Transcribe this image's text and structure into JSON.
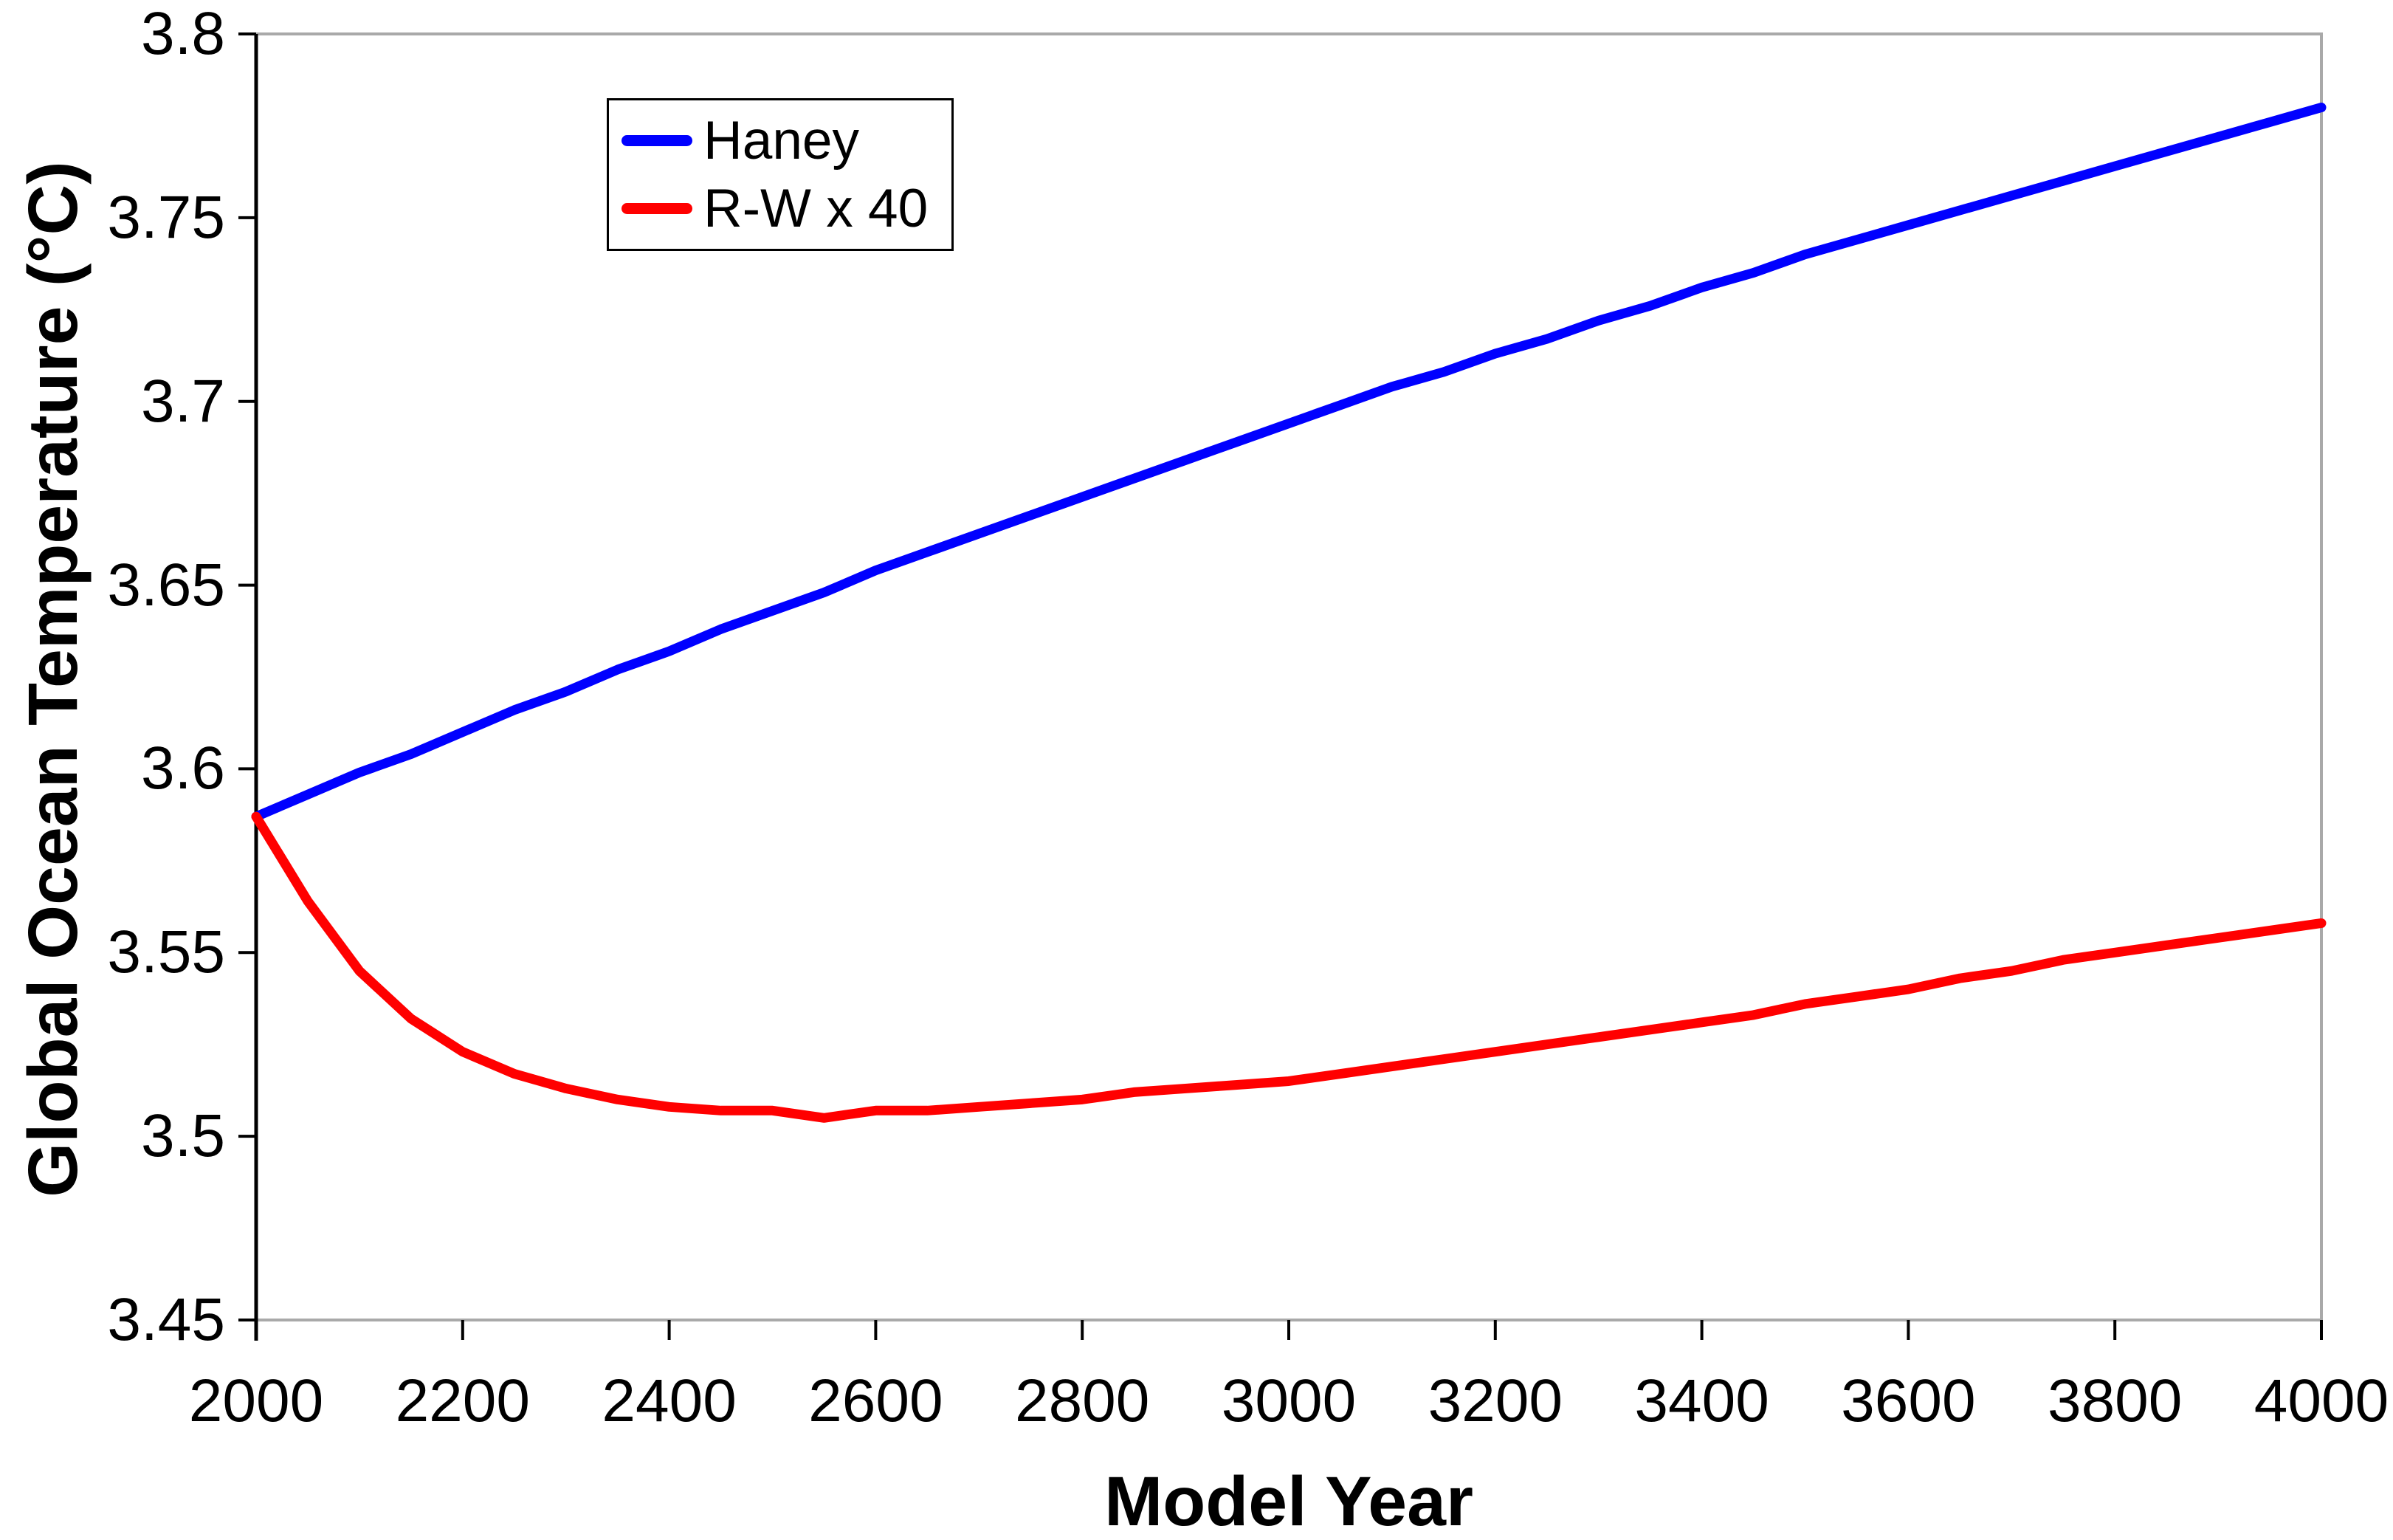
{
  "colors": {
    "background": "#ffffff",
    "plot_border": "#a9a9a9",
    "axis_line": "#000000",
    "tick": "#000000",
    "text": "#000000",
    "haney_line": "#0000ff",
    "rw_line": "#ff0000"
  },
  "axes": {
    "y": {
      "title": "Global Ocean Temperature (°C)",
      "tick_labels": [
        "3.8",
        "3.75",
        "3.7",
        "3.65",
        "3.6",
        "3.55",
        "3.5",
        "3.45"
      ],
      "tick_values": [
        3.8,
        3.75,
        3.7,
        3.65,
        3.6,
        3.55,
        3.5,
        3.45
      ]
    },
    "x": {
      "title": "Model Year",
      "tick_labels": [
        "2000",
        "2200",
        "2400",
        "2600",
        "2800",
        "3000",
        "3200",
        "3400",
        "3600",
        "3800",
        "4000"
      ],
      "tick_values": [
        2000,
        2200,
        2400,
        2600,
        2800,
        3000,
        3200,
        3400,
        3600,
        3800,
        4000
      ]
    }
  },
  "legend": {
    "entries": [
      {
        "label": "Haney",
        "color": "#0000ff"
      },
      {
        "label": "R-W x 40",
        "color": "#ff0000"
      }
    ]
  },
  "chart_data": {
    "type": "line",
    "title": "",
    "xlabel": "Model Year",
    "ylabel": "Global Ocean Temperature (°C)",
    "xlim": [
      2000,
      4000
    ],
    "ylim": [
      3.45,
      3.8
    ],
    "grid": false,
    "legend_position": "top-left-inside",
    "x": [
      2000,
      2050,
      2100,
      2150,
      2200,
      2250,
      2300,
      2350,
      2400,
      2450,
      2500,
      2550,
      2600,
      2650,
      2700,
      2750,
      2800,
      2850,
      2900,
      2950,
      3000,
      3050,
      3100,
      3150,
      3200,
      3250,
      3300,
      3350,
      3400,
      3450,
      3500,
      3550,
      3600,
      3650,
      3700,
      3750,
      3800,
      3850,
      3900,
      3950,
      4000
    ],
    "series": [
      {
        "name": "Haney",
        "color": "#0000ff",
        "values": [
          3.587,
          3.593,
          3.599,
          3.604,
          3.61,
          3.616,
          3.621,
          3.627,
          3.632,
          3.638,
          3.643,
          3.648,
          3.654,
          3.659,
          3.664,
          3.669,
          3.674,
          3.679,
          3.684,
          3.689,
          3.694,
          3.699,
          3.704,
          3.708,
          3.713,
          3.717,
          3.722,
          3.726,
          3.731,
          3.735,
          3.74,
          3.744,
          3.748,
          3.752,
          3.756,
          3.76,
          3.764,
          3.768,
          3.772,
          3.776,
          3.78
        ]
      },
      {
        "name": "R-W x 40",
        "color": "#ff0000",
        "values": [
          3.587,
          3.564,
          3.545,
          3.532,
          3.523,
          3.517,
          3.513,
          3.51,
          3.508,
          3.507,
          3.507,
          3.505,
          3.507,
          3.507,
          3.508,
          3.509,
          3.51,
          3.512,
          3.513,
          3.514,
          3.515,
          3.517,
          3.519,
          3.521,
          3.523,
          3.525,
          3.527,
          3.529,
          3.531,
          3.533,
          3.536,
          3.538,
          3.54,
          3.543,
          3.545,
          3.548,
          3.55,
          3.552,
          3.554,
          3.556,
          3.558
        ]
      }
    ]
  }
}
